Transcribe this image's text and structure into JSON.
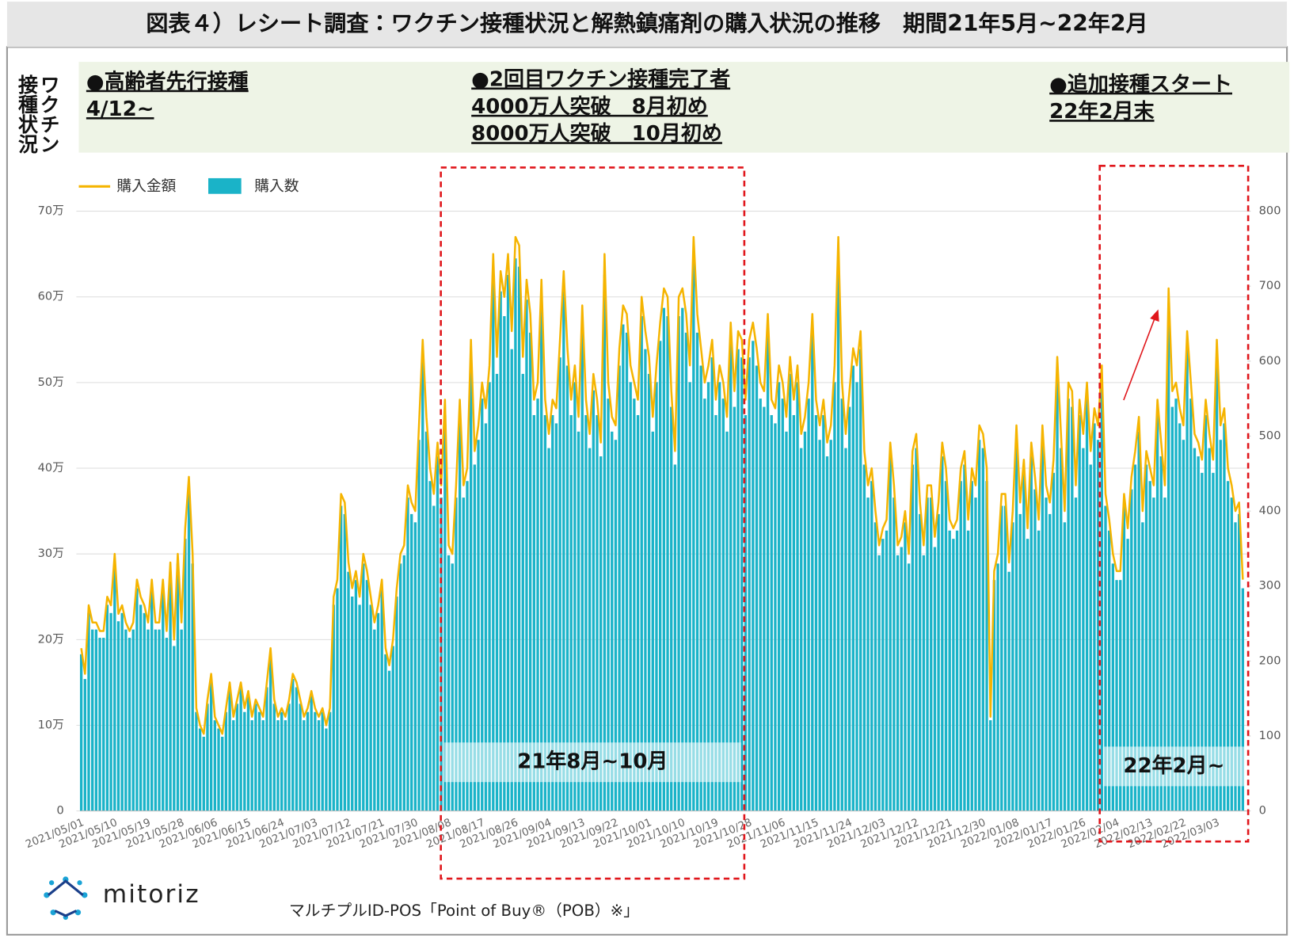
{
  "chart_data": {
    "type": "combo",
    "title": "図表４）レシート調査：ワクチン接種状況と解熱鎮痛剤の購入状況の推移　期間21年5月~22年2月",
    "side_label": "ワクチン接種状況",
    "annotations": [
      {
        "lines": [
          "●高齢者先行接種",
          "4/12~"
        ]
      },
      {
        "lines": [
          "●2回目ワクチン接種完了者",
          "4000万人突破　8月初め",
          "8000万人突破　10月初め"
        ]
      },
      {
        "lines": [
          "●追加接種スタート",
          "22年2月末"
        ]
      }
    ],
    "highlights": [
      "21年8月~10月",
      "22年2月~"
    ],
    "brand": "mitoriz",
    "source": "マルチプルID-POS「Point of Buy®（POB）※」",
    "grid": true,
    "ylim": [
      0,
      70
    ],
    "yticks": [
      0,
      {
        "value": 10,
        "label": "10万"
      },
      {
        "value": 20,
        "label": "20万"
      },
      {
        "value": 30,
        "label": "30万"
      },
      {
        "value": 40,
        "label": "40万"
      },
      {
        "value": 50,
        "label": "50万"
      },
      {
        "value": 60,
        "label": "60万"
      },
      {
        "value": 70,
        "label": "70万"
      }
    ],
    "y2lim": [
      0,
      800
    ],
    "y2ticks": [
      0,
      100,
      200,
      300,
      400,
      500,
      600,
      700,
      800
    ],
    "categories": [
      "2021/05/01",
      null,
      null,
      null,
      null,
      null,
      null,
      null,
      null,
      "2021/05/10",
      null,
      null,
      null,
      null,
      null,
      null,
      null,
      null,
      "2021/05/19",
      null,
      null,
      null,
      null,
      null,
      null,
      null,
      null,
      "2021/05/28",
      null,
      null,
      null,
      null,
      null,
      null,
      null,
      null,
      "2021/06/06",
      null,
      null,
      null,
      null,
      null,
      null,
      null,
      null,
      "2021/06/15",
      null,
      null,
      null,
      null,
      null,
      null,
      null,
      null,
      "2021/06/24",
      null,
      null,
      null,
      null,
      null,
      null,
      null,
      null,
      "2021/07/03",
      null,
      null,
      null,
      null,
      null,
      null,
      null,
      null,
      "2021/07/12",
      null,
      null,
      null,
      null,
      null,
      null,
      null,
      null,
      "2021/07/21",
      null,
      null,
      null,
      null,
      null,
      null,
      null,
      null,
      "2021/07/30",
      null,
      null,
      null,
      null,
      null,
      null,
      null,
      null,
      "2021/08/08",
      null,
      null,
      null,
      null,
      null,
      null,
      null,
      null,
      "2021/08/17",
      null,
      null,
      null,
      null,
      null,
      null,
      null,
      null,
      "2021/08/26",
      null,
      null,
      null,
      null,
      null,
      null,
      null,
      null,
      "2021/09/04",
      null,
      null,
      null,
      null,
      null,
      null,
      null,
      null,
      "2021/09/13",
      null,
      null,
      null,
      null,
      null,
      null,
      null,
      null,
      "2021/09/22",
      null,
      null,
      null,
      null,
      null,
      null,
      null,
      null,
      "2021/10/01",
      null,
      null,
      null,
      null,
      null,
      null,
      null,
      null,
      "2021/10/10",
      null,
      null,
      null,
      null,
      null,
      null,
      null,
      null,
      "2021/10/19",
      null,
      null,
      null,
      null,
      null,
      null,
      null,
      null,
      "2021/10/28",
      null,
      null,
      null,
      null,
      null,
      null,
      null,
      null,
      "2021/11/06",
      null,
      null,
      null,
      null,
      null,
      null,
      null,
      null,
      "2021/11/15",
      null,
      null,
      null,
      null,
      null,
      null,
      null,
      null,
      "2021/11/24",
      null,
      null,
      null,
      null,
      null,
      null,
      null,
      null,
      "2021/12/03",
      null,
      null,
      null,
      null,
      null,
      null,
      null,
      null,
      "2021/12/12",
      null,
      null,
      null,
      null,
      null,
      null,
      null,
      null,
      "2021/12/21",
      null,
      null,
      null,
      null,
      null,
      null,
      null,
      null,
      "2021/12/30",
      null,
      null,
      null,
      null,
      null,
      null,
      null,
      null,
      "2022/01/08",
      null,
      null,
      null,
      null,
      null,
      null,
      null,
      null,
      "2022/01/17",
      null,
      null,
      null,
      null,
      null,
      null,
      null,
      null,
      "2022/01/26",
      null,
      null,
      null,
      null,
      null,
      null,
      null,
      null,
      "2022/02/04",
      null,
      null,
      null,
      null,
      null,
      null,
      null,
      null,
      "2022/02/13",
      null,
      null,
      null,
      null,
      null,
      null,
      null,
      null,
      "2022/02/22",
      null,
      null,
      null,
      null,
      null,
      null,
      null,
      null,
      "2022/03/03",
      null,
      null,
      null,
      null,
      null,
      null,
      null
    ],
    "series": [
      {
        "name": "購入金額",
        "type": "line",
        "color": "#f5b400",
        "values": [
          19,
          16,
          24,
          22,
          22,
          21,
          21,
          25,
          24,
          30,
          23,
          24,
          22,
          21,
          22,
          27,
          25,
          24,
          22,
          27,
          22,
          22,
          27,
          21,
          29,
          20,
          30,
          22,
          33,
          39,
          30,
          12,
          10,
          9,
          13,
          16,
          11,
          10,
          9,
          12,
          15,
          11,
          13,
          15,
          12,
          14,
          11,
          13,
          12,
          11,
          15,
          19,
          13,
          11,
          12,
          11,
          13,
          16,
          15,
          13,
          11,
          12,
          14,
          12,
          11,
          12,
          10,
          12,
          25,
          27,
          37,
          36,
          29,
          26,
          28,
          25,
          30,
          28,
          25,
          22,
          24,
          27,
          19,
          17,
          20,
          26,
          30,
          31,
          38,
          36,
          35,
          45,
          55,
          46,
          40,
          37,
          43,
          38,
          48,
          31,
          30,
          38,
          48,
          38,
          40,
          55,
          42,
          45,
          50,
          47,
          52,
          65,
          53,
          63,
          60,
          65,
          56,
          67,
          66,
          53,
          62,
          58,
          48,
          50,
          62,
          48,
          44,
          48,
          47,
          55,
          63,
          54,
          48,
          52,
          46,
          59,
          48,
          44,
          51,
          48,
          43,
          65,
          50,
          46,
          45,
          54,
          59,
          58,
          52,
          50,
          48,
          60,
          56,
          53,
          46,
          52,
          57,
          61,
          60,
          49,
          42,
          60,
          61,
          58,
          52,
          67,
          58,
          54,
          50,
          52,
          55,
          48,
          52,
          50,
          46,
          57,
          49,
          56,
          55,
          48,
          55,
          57,
          54,
          50,
          49,
          58,
          48,
          47,
          52,
          50,
          46,
          53,
          48,
          52,
          44,
          46,
          50,
          58,
          48,
          45,
          48,
          43,
          45,
          52,
          67,
          50,
          44,
          49,
          54,
          52,
          56,
          42,
          38,
          40,
          35,
          31,
          33,
          34,
          43,
          38,
          31,
          32,
          35,
          30,
          42,
          44,
          36,
          31,
          38,
          38,
          32,
          36,
          43,
          40,
          34,
          33,
          34,
          40,
          42,
          34,
          40,
          38,
          45,
          44,
          40,
          11,
          28,
          30,
          37,
          37,
          29,
          35,
          45,
          36,
          41,
          33,
          43,
          39,
          34,
          45,
          38,
          36,
          41,
          53,
          44,
          35,
          50,
          49,
          38,
          48,
          44,
          50,
          42,
          47,
          45,
          52,
          37,
          34,
          30,
          28,
          28,
          37,
          33,
          39,
          42,
          46,
          35,
          42,
          40,
          38,
          48,
          43,
          38,
          61,
          49,
          50,
          47,
          45,
          56,
          50,
          44,
          43,
          41,
          48,
          44,
          41,
          55,
          45,
          47,
          40,
          38,
          35,
          36,
          27
        ]
      },
      {
        "name": "購入数",
        "type": "bar",
        "axis": "y2",
        "color": "#1ab3c8",
        "values": [
          209,
          176,
          264,
          242,
          242,
          231,
          231,
          275,
          264,
          330,
          253,
          264,
          242,
          231,
          242,
          297,
          275,
          264,
          242,
          297,
          242,
          242,
          297,
          231,
          319,
          220,
          330,
          242,
          363,
          429,
          330,
          132,
          110,
          99,
          143,
          176,
          121,
          110,
          99,
          132,
          165,
          121,
          143,
          165,
          132,
          154,
          121,
          143,
          132,
          121,
          165,
          209,
          143,
          121,
          132,
          121,
          143,
          176,
          165,
          143,
          121,
          132,
          154,
          132,
          121,
          132,
          110,
          132,
          275,
          297,
          407,
          396,
          319,
          286,
          308,
          275,
          330,
          308,
          275,
          242,
          264,
          297,
          209,
          187,
          220,
          286,
          330,
          341,
          418,
          396,
          385,
          495,
          605,
          506,
          440,
          407,
          473,
          418,
          528,
          341,
          330,
          418,
          528,
          418,
          440,
          605,
          462,
          495,
          550,
          517,
          572,
          715,
          583,
          693,
          660,
          715,
          616,
          737,
          726,
          583,
          682,
          638,
          528,
          550,
          682,
          528,
          484,
          528,
          517,
          605,
          693,
          594,
          528,
          572,
          506,
          649,
          528,
          484,
          561,
          528,
          473,
          715,
          550,
          506,
          495,
          594,
          649,
          638,
          572,
          550,
          528,
          660,
          616,
          583,
          506,
          572,
          627,
          671,
          660,
          539,
          462,
          660,
          671,
          638,
          572,
          737,
          638,
          594,
          550,
          572,
          605,
          528,
          572,
          550,
          506,
          627,
          539,
          616,
          605,
          528,
          605,
          627,
          594,
          550,
          539,
          638,
          528,
          517,
          572,
          550,
          506,
          583,
          528,
          572,
          484,
          506,
          550,
          638,
          528,
          495,
          528,
          473,
          495,
          572,
          737,
          550,
          484,
          539,
          594,
          572,
          616,
          462,
          418,
          440,
          385,
          341,
          363,
          374,
          473,
          418,
          341,
          352,
          385,
          330,
          462,
          484,
          396,
          341,
          418,
          418,
          352,
          396,
          473,
          440,
          374,
          363,
          374,
          440,
          462,
          374,
          440,
          418,
          495,
          484,
          440,
          121,
          308,
          330,
          407,
          407,
          319,
          385,
          495,
          396,
          451,
          363,
          473,
          429,
          374,
          495,
          418,
          396,
          451,
          583,
          484,
          385,
          550,
          539,
          418,
          528,
          484,
          550,
          462,
          517,
          495,
          572,
          407,
          374,
          330,
          308,
          308,
          407,
          363,
          429,
          462,
          506,
          385,
          462,
          440,
          418,
          528,
          473,
          418,
          671,
          539,
          550,
          517,
          495,
          616,
          550,
          484,
          473,
          451,
          528,
          484,
          451,
          605,
          495,
          517,
          440,
          418,
          385,
          396,
          297
        ]
      }
    ]
  }
}
